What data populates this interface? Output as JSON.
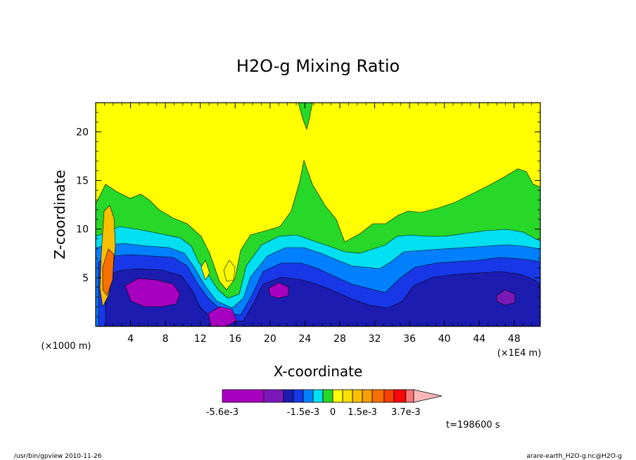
{
  "chart_data": {
    "type": "heatmap",
    "title": "H2O-g Mixing Ratio",
    "xlabel": "X-coordinate",
    "ylabel": "Z-coordinate",
    "x_unit": "(×1E4 m)",
    "y_unit": "(×1000 m)",
    "xlim": [
      0,
      51
    ],
    "ylim": [
      0,
      23
    ],
    "xticks": [
      4,
      8,
      12,
      16,
      20,
      24,
      28,
      32,
      36,
      40,
      44,
      48
    ],
    "yticks": [
      5,
      10,
      15,
      20
    ],
    "grid": false,
    "colorbar": {
      "placement": "bottom",
      "min": -0.0056,
      "max": 0.0045,
      "labels": [
        {
          "value": -0.0056,
          "text": "-5.6e-3"
        },
        {
          "value": -0.0015,
          "text": "-1.5e-3"
        },
        {
          "value": 0,
          "text": "0"
        },
        {
          "value": 0.0015,
          "text": "1.5e-3"
        },
        {
          "value": 0.0037,
          "text": "3.7e-3"
        }
      ],
      "levels": [
        {
          "from": -0.0056,
          "to": -0.0035,
          "color": "#a800c0"
        },
        {
          "from": -0.0035,
          "to": -0.0025,
          "color": "#7a18b8"
        },
        {
          "from": -0.0025,
          "to": -0.002,
          "color": "#1c1cb0"
        },
        {
          "from": -0.002,
          "to": -0.0015,
          "color": "#1838e8"
        },
        {
          "from": -0.0015,
          "to": -0.001,
          "color": "#0080ff"
        },
        {
          "from": -0.001,
          "to": -0.0005,
          "color": "#00e0f0"
        },
        {
          "from": -0.0005,
          "to": 0,
          "color": "#28d828"
        },
        {
          "from": 0,
          "to": 0.0005,
          "color": "#ffff00"
        },
        {
          "from": 0.0005,
          "to": 0.001,
          "color": "#f8e000"
        },
        {
          "from": 0.001,
          "to": 0.0015,
          "color": "#f8c000"
        },
        {
          "from": 0.0015,
          "to": 0.002,
          "color": "#f8a000"
        },
        {
          "from": 0.002,
          "to": 0.0026,
          "color": "#f87000"
        },
        {
          "from": 0.0026,
          "to": 0.0031,
          "color": "#f84000"
        },
        {
          "from": 0.0031,
          "to": 0.0037,
          "color": "#f80808"
        },
        {
          "from": 0.0037,
          "to": 0.0041,
          "color": "#f87878"
        }
      ],
      "overflow_color": "#f8b8b8"
    },
    "regions": [
      {
        "name": "upper-dry-layer",
        "color": "#ffff00"
      },
      {
        "name": "moist-green-layer",
        "color": "#28d828"
      },
      {
        "name": "cyan-layer",
        "color": "#00e0f0"
      },
      {
        "name": "light-blue-layer",
        "color": "#0080ff"
      },
      {
        "name": "blue-layer",
        "color": "#1838e8"
      },
      {
        "name": "dark-blue-layer",
        "color": "#1c1cb0"
      },
      {
        "name": "purple-core",
        "color": "#a800c0"
      }
    ]
  },
  "annotations": {
    "time": "t=198600 s",
    "footer_left": "/usr/bin/gpview  2010-11-26",
    "footer_right": "arare-earth_H2O-g.nc@H2O-g"
  }
}
